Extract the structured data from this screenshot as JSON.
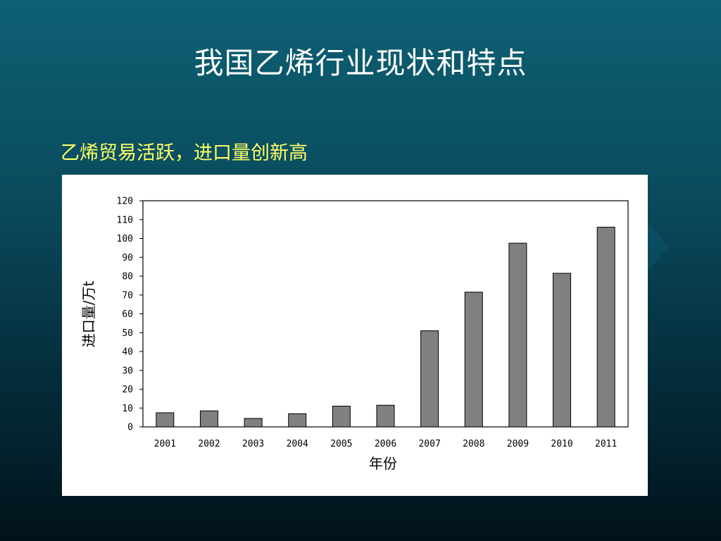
{
  "slide": {
    "title": "我国乙烯行业现状和特点",
    "subtitle": "乙烯贸易活跃，进口量创新高"
  },
  "colors": {
    "background_top": "#0e6074",
    "background_bottom": "#01121a",
    "title_text": "#ffffff",
    "subtitle_text": "#ffff66",
    "bar_fill": "#808080",
    "bar_stroke": "#000000"
  },
  "chart_data": {
    "type": "bar",
    "title": "",
    "xlabel": "年份",
    "ylabel": "进口量/万t",
    "ylim": [
      0,
      120
    ],
    "yticks": [
      0,
      10,
      20,
      30,
      40,
      50,
      60,
      70,
      80,
      90,
      100,
      110,
      120
    ],
    "categories": [
      "2001",
      "2002",
      "2003",
      "2004",
      "2005",
      "2006",
      "2007",
      "2008",
      "2009",
      "2010",
      "2011"
    ],
    "values": [
      7.5,
      8.5,
      4.5,
      7,
      11,
      11.5,
      51,
      71.5,
      97.5,
      81.5,
      106
    ],
    "grid": false,
    "legend": "none"
  }
}
